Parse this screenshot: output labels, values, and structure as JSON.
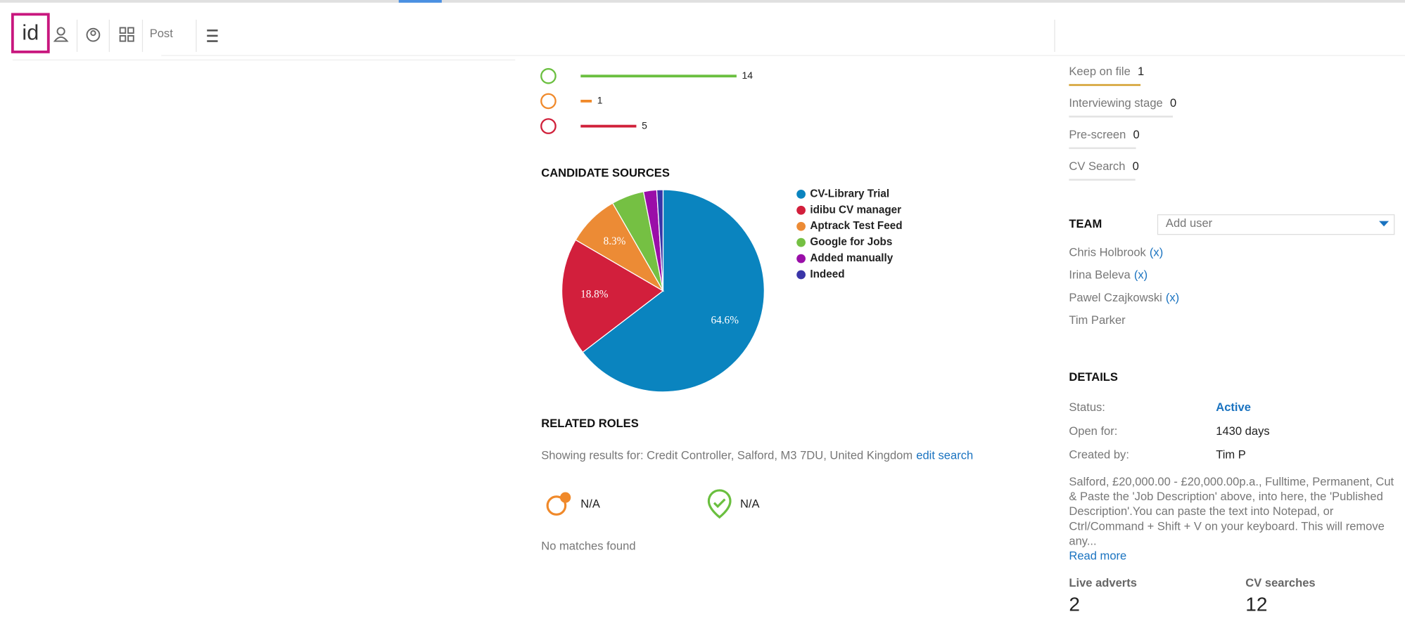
{
  "nav": {
    "post": "Post"
  },
  "status_counts": [
    {
      "value": 14,
      "color": "#6abf3f"
    },
    {
      "value": 1,
      "color": "#f0892a"
    },
    {
      "value": 5,
      "color": "#d0203a"
    }
  ],
  "candidate_sources": {
    "type": "pie",
    "title": "CANDIDATE SOURCES",
    "categories": [
      "CV-Library Trial",
      "idibu CV manager",
      "Aptrack Test Feed",
      "Google for Jobs",
      "Added manually",
      "Indeed"
    ],
    "values": [
      64.6,
      18.8,
      8.3,
      5.2,
      2.1,
      1.0
    ],
    "value_labels": [
      "64.6%",
      "18.8%",
      "8.3%",
      null,
      null,
      null
    ],
    "colors": [
      "#0a84bf",
      "#d21f3c",
      "#ec8b35",
      "#75c043",
      "#9a0ea8",
      "#3a35a8"
    ]
  },
  "related_roles": {
    "title": "RELATED ROLES",
    "showing": "Showing results for: Credit Controller, Salford, M3 7DU, United Kingdom",
    "edit": "edit search",
    "scores": [
      "N/A",
      "N/A"
    ],
    "empty": "No matches found"
  },
  "stages": [
    {
      "label": "Keep on file",
      "count": 1
    },
    {
      "label": "Interviewing stage",
      "count": 0
    },
    {
      "label": "Pre-screen",
      "count": 0
    },
    {
      "label": "CV Search",
      "count": 0
    }
  ],
  "team": {
    "title": "TEAM",
    "placeholder": "Add user",
    "members": [
      {
        "name": "Chris Holbrook",
        "remove": "(x)"
      },
      {
        "name": "Irina Beleva",
        "remove": "(x)"
      },
      {
        "name": "Pawel Czajkowski",
        "remove": "(x)"
      },
      {
        "name": "Tim Parker"
      }
    ]
  },
  "details": {
    "title": "DETAILS",
    "rows": [
      {
        "label": "Status:",
        "value": "Active"
      },
      {
        "label": "Open for:",
        "value": "1430 days"
      },
      {
        "label": "Created by:",
        "value": "Tim P"
      }
    ],
    "description": [
      "Salford, £20,000.00 - £20,000.00p.a., Fulltime, Permanent, Cut",
      "& Paste the 'Job Description' above, into here, the 'Published",
      "Description'.You can paste the text into Notepad, or",
      "Ctrl/Command + Shift + V on your keyboard. This will remove",
      "any..."
    ],
    "read_more": "Read more"
  },
  "stats": [
    {
      "label": "Live adverts",
      "value": 2
    },
    {
      "label": "CV searches",
      "value": 12
    }
  ]
}
